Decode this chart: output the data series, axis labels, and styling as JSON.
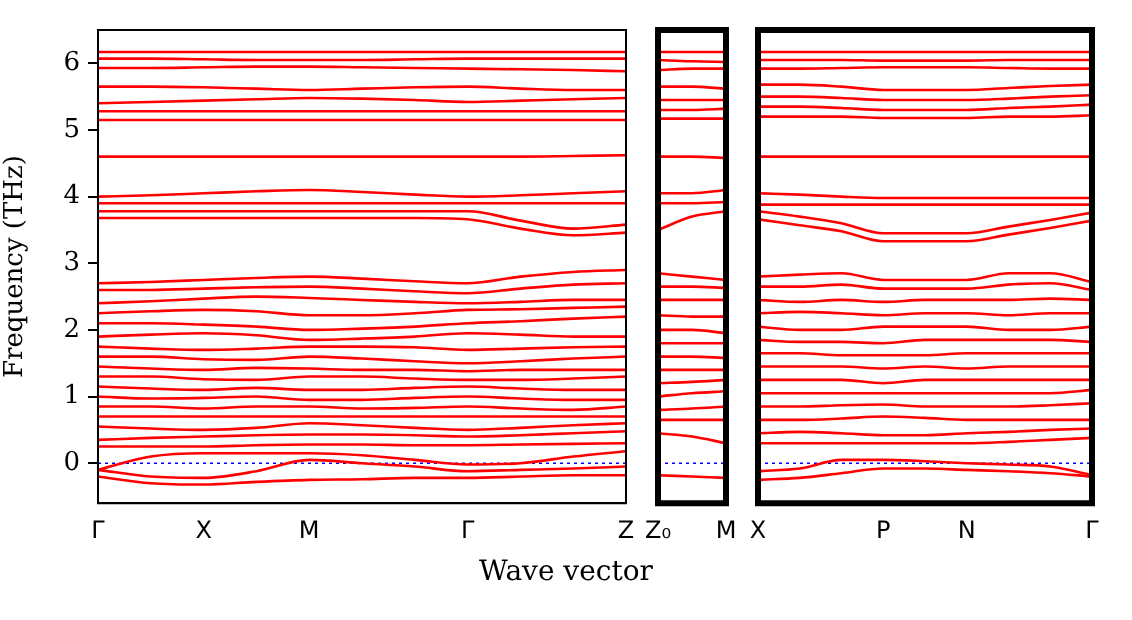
{
  "chart_data": [
    {
      "type": "line",
      "ylabel": "Frequency (THz)",
      "xlabel": "Wave vector",
      "categories": [
        "Γ",
        null,
        "X",
        null,
        "M",
        null,
        null,
        "Γ",
        null,
        null,
        "Z"
      ],
      "ylim": [
        -0.6,
        6.5
      ],
      "yticks": [
        0,
        1,
        2,
        3,
        4,
        5,
        6
      ],
      "grid": false,
      "legend": false,
      "marker": "none",
      "line_style": "solid",
      "ref_lines": [
        {
          "axis": "y",
          "value": 0,
          "color": "#0000ff",
          "line_style": "dotted"
        }
      ],
      "series": [
        {
          "color": "#ff0000",
          "values": [
            6.17,
            6.17,
            6.17,
            6.17,
            6.17,
            6.17,
            6.17,
            6.17,
            6.17,
            6.17,
            6.17
          ]
        },
        {
          "color": "#ff0000",
          "values": [
            6.07,
            6.07,
            6.06,
            6.05,
            6.05,
            6.05,
            6.06,
            6.07,
            6.07,
            6.07,
            6.07
          ]
        },
        {
          "color": "#ff0000",
          "values": [
            5.93,
            5.93,
            5.94,
            5.95,
            5.95,
            5.94,
            5.93,
            5.92,
            5.91,
            5.9,
            5.88
          ]
        },
        {
          "color": "#ff0000",
          "values": [
            5.65,
            5.65,
            5.64,
            5.62,
            5.6,
            5.62,
            5.64,
            5.65,
            5.62,
            5.6,
            5.6
          ]
        },
        {
          "color": "#ff0000",
          "values": [
            5.4,
            5.42,
            5.44,
            5.46,
            5.48,
            5.47,
            5.45,
            5.42,
            5.44,
            5.46,
            5.48
          ]
        },
        {
          "color": "#ff0000",
          "values": [
            5.28,
            5.28,
            5.28,
            5.28,
            5.28,
            5.28,
            5.28,
            5.28,
            5.28,
            5.28,
            5.28
          ]
        },
        {
          "color": "#ff0000",
          "values": [
            5.15,
            5.15,
            5.15,
            5.15,
            5.15,
            5.15,
            5.15,
            5.15,
            5.15,
            5.15,
            5.15
          ]
        },
        {
          "color": "#ff0000",
          "values": [
            4.6,
            4.6,
            4.6,
            4.6,
            4.6,
            4.6,
            4.6,
            4.6,
            4.6,
            4.61,
            4.62
          ]
        },
        {
          "color": "#ff0000",
          "values": [
            4.0,
            4.02,
            4.05,
            4.08,
            4.1,
            4.07,
            4.03,
            4.0,
            4.02,
            4.05,
            4.08
          ]
        },
        {
          "color": "#ff0000",
          "values": [
            3.9,
            3.9,
            3.9,
            3.9,
            3.9,
            3.9,
            3.9,
            3.9,
            3.9,
            3.9,
            3.9
          ]
        },
        {
          "color": "#ff0000",
          "values": [
            3.78,
            3.78,
            3.78,
            3.78,
            3.78,
            3.78,
            3.78,
            3.78,
            3.64,
            3.52,
            3.58
          ]
        },
        {
          "color": "#ff0000",
          "values": [
            3.68,
            3.68,
            3.68,
            3.68,
            3.68,
            3.68,
            3.68,
            3.66,
            3.52,
            3.42,
            3.46
          ]
        },
        {
          "color": "#ff0000",
          "values": [
            2.7,
            2.72,
            2.75,
            2.78,
            2.8,
            2.77,
            2.73,
            2.7,
            2.8,
            2.87,
            2.9
          ]
        },
        {
          "color": "#ff0000",
          "values": [
            2.6,
            2.6,
            2.62,
            2.64,
            2.65,
            2.62,
            2.58,
            2.55,
            2.62,
            2.68,
            2.7
          ]
        },
        {
          "color": "#ff0000",
          "values": [
            2.4,
            2.43,
            2.47,
            2.5,
            2.48,
            2.45,
            2.42,
            2.4,
            2.42,
            2.45,
            2.45
          ]
        },
        {
          "color": "#ff0000",
          "values": [
            2.25,
            2.28,
            2.3,
            2.28,
            2.22,
            2.22,
            2.25,
            2.3,
            2.31,
            2.33,
            2.35
          ]
        },
        {
          "color": "#ff0000",
          "values": [
            2.1,
            2.1,
            2.08,
            2.05,
            2.0,
            2.02,
            2.05,
            2.1,
            2.13,
            2.17,
            2.2
          ]
        },
        {
          "color": "#ff0000",
          "values": [
            1.9,
            1.93,
            1.95,
            1.92,
            1.85,
            1.87,
            1.9,
            1.95,
            1.93,
            1.9,
            1.9
          ]
        },
        {
          "color": "#ff0000",
          "values": [
            1.75,
            1.72,
            1.7,
            1.72,
            1.75,
            1.75,
            1.74,
            1.7,
            1.72,
            1.74,
            1.75
          ]
        },
        {
          "color": "#ff0000",
          "values": [
            1.6,
            1.6,
            1.56,
            1.55,
            1.6,
            1.57,
            1.53,
            1.5,
            1.53,
            1.57,
            1.6
          ]
        },
        {
          "color": "#ff0000",
          "values": [
            1.45,
            1.42,
            1.4,
            1.43,
            1.42,
            1.4,
            1.4,
            1.38,
            1.4,
            1.4,
            1.4
          ]
        },
        {
          "color": "#ff0000",
          "values": [
            1.3,
            1.3,
            1.26,
            1.25,
            1.3,
            1.3,
            1.27,
            1.25,
            1.25,
            1.27,
            1.3
          ]
        },
        {
          "color": "#ff0000",
          "values": [
            1.15,
            1.12,
            1.1,
            1.13,
            1.1,
            1.1,
            1.13,
            1.15,
            1.12,
            1.1,
            1.1
          ]
        },
        {
          "color": "#ff0000",
          "values": [
            1.0,
            0.97,
            0.98,
            1.0,
            0.95,
            0.95,
            0.98,
            1.0,
            0.97,
            0.95,
            0.95
          ]
        },
        {
          "color": "#ff0000",
          "values": [
            0.85,
            0.85,
            0.82,
            0.85,
            0.85,
            0.82,
            0.83,
            0.85,
            0.82,
            0.8,
            0.85
          ]
        },
        {
          "color": "#ff0000",
          "values": [
            0.7,
            0.7,
            0.7,
            0.7,
            0.7,
            0.7,
            0.7,
            0.7,
            0.7,
            0.7,
            0.7
          ]
        },
        {
          "color": "#ff0000",
          "values": [
            0.55,
            0.52,
            0.5,
            0.53,
            0.6,
            0.57,
            0.53,
            0.5,
            0.53,
            0.57,
            0.6
          ]
        },
        {
          "color": "#ff0000",
          "values": [
            0.35,
            0.38,
            0.4,
            0.42,
            0.43,
            0.43,
            0.42,
            0.4,
            0.42,
            0.45,
            0.48
          ]
        },
        {
          "color": "#ff0000",
          "values": [
            0.25,
            0.25,
            0.25,
            0.27,
            0.28,
            0.28,
            0.27,
            0.27,
            0.28,
            0.29,
            0.3
          ]
        },
        {
          "color": "#ff0000",
          "values": [
            -0.1,
            0.1,
            0.15,
            0.15,
            0.15,
            0.12,
            0.05,
            -0.02,
            0.0,
            0.1,
            0.18
          ]
        },
        {
          "color": "#ff0000",
          "values": [
            -0.1,
            -0.2,
            -0.22,
            -0.12,
            0.05,
            0.0,
            -0.05,
            -0.12,
            -0.1,
            -0.08,
            -0.05
          ]
        },
        {
          "color": "#ff0000",
          "values": [
            -0.2,
            -0.3,
            -0.32,
            -0.28,
            -0.25,
            -0.24,
            -0.22,
            -0.22,
            -0.2,
            -0.18,
            -0.18
          ]
        }
      ]
    },
    {
      "type": "line",
      "categories": [
        "Z₀",
        null,
        "M"
      ],
      "ylim": [
        -0.6,
        6.5
      ],
      "yticks": [
        0,
        1,
        2,
        3,
        4,
        5,
        6
      ],
      "tick_labels": "x",
      "grid": false,
      "legend": false,
      "marker": "none",
      "line_style": "solid",
      "ref_lines": [
        {
          "axis": "y",
          "value": 0,
          "color": "#0000ff",
          "line_style": "dotted"
        }
      ],
      "series": [
        {
          "color": "#ff0000",
          "values": [
            6.17,
            6.17,
            6.17
          ]
        },
        {
          "color": "#ff0000",
          "values": [
            6.05,
            6.03,
            6.02
          ]
        },
        {
          "color": "#ff0000",
          "values": [
            5.9,
            5.92,
            5.92
          ]
        },
        {
          "color": "#ff0000",
          "values": [
            5.65,
            5.65,
            5.62
          ]
        },
        {
          "color": "#ff0000",
          "values": [
            5.45,
            5.45,
            5.45
          ]
        },
        {
          "color": "#ff0000",
          "values": [
            5.3,
            5.3,
            5.32
          ]
        },
        {
          "color": "#ff0000",
          "values": [
            5.17,
            5.17,
            5.17
          ]
        },
        {
          "color": "#ff0000",
          "values": [
            4.6,
            4.6,
            4.58
          ]
        },
        {
          "color": "#ff0000",
          "values": [
            4.05,
            4.05,
            4.1
          ]
        },
        {
          "color": "#ff0000",
          "values": [
            3.9,
            3.9,
            3.92
          ]
        },
        {
          "color": "#ff0000",
          "values": [
            3.5,
            3.7,
            3.78
          ]
        },
        {
          "color": "#ff0000",
          "values": [
            2.85,
            2.8,
            2.75
          ]
        },
        {
          "color": "#ff0000",
          "values": [
            2.65,
            2.65,
            2.63
          ]
        },
        {
          "color": "#ff0000",
          "values": [
            2.45,
            2.45,
            2.45
          ]
        },
        {
          "color": "#ff0000",
          "values": [
            2.22,
            2.2,
            2.2
          ]
        },
        {
          "color": "#ff0000",
          "values": [
            2.0,
            2.0,
            1.95
          ]
        },
        {
          "color": "#ff0000",
          "values": [
            1.8,
            1.8,
            1.8
          ]
        },
        {
          "color": "#ff0000",
          "values": [
            1.6,
            1.6,
            1.58
          ]
        },
        {
          "color": "#ff0000",
          "values": [
            1.4,
            1.4,
            1.4
          ]
        },
        {
          "color": "#ff0000",
          "values": [
            1.2,
            1.22,
            1.25
          ]
        },
        {
          "color": "#ff0000",
          "values": [
            1.0,
            1.05,
            1.08
          ]
        },
        {
          "color": "#ff0000",
          "values": [
            0.8,
            0.82,
            0.85
          ]
        },
        {
          "color": "#ff0000",
          "values": [
            0.65,
            0.65,
            0.65
          ]
        },
        {
          "color": "#ff0000",
          "values": [
            0.45,
            0.4,
            0.3
          ]
        },
        {
          "color": "#ff0000",
          "values": [
            -0.18,
            -0.2,
            -0.22
          ]
        }
      ]
    },
    {
      "type": "line",
      "categories": [
        "X",
        null,
        null,
        "P",
        null,
        "N",
        null,
        null,
        "Γ"
      ],
      "ylim": [
        -0.6,
        6.5
      ],
      "yticks": [
        0,
        1,
        2,
        3,
        4,
        5,
        6
      ],
      "tick_labels": "x",
      "grid": false,
      "legend": false,
      "marker": "none",
      "line_style": "solid",
      "ref_lines": [
        {
          "axis": "y",
          "value": 0,
          "color": "#0000ff",
          "line_style": "dotted"
        }
      ],
      "series": [
        {
          "color": "#ff0000",
          "values": [
            6.17,
            6.17,
            6.17,
            6.17,
            6.17,
            6.17,
            6.17,
            6.17,
            6.17
          ]
        },
        {
          "color": "#ff0000",
          "values": [
            6.05,
            6.05,
            6.05,
            6.04,
            6.04,
            6.04,
            6.05,
            6.05,
            6.05
          ]
        },
        {
          "color": "#ff0000",
          "values": [
            5.92,
            5.92,
            5.93,
            5.94,
            5.94,
            5.94,
            5.93,
            5.92,
            5.92
          ]
        },
        {
          "color": "#ff0000",
          "values": [
            5.68,
            5.68,
            5.65,
            5.6,
            5.6,
            5.6,
            5.63,
            5.66,
            5.68
          ]
        },
        {
          "color": "#ff0000",
          "values": [
            5.5,
            5.5,
            5.48,
            5.45,
            5.45,
            5.45,
            5.47,
            5.5,
            5.52
          ]
        },
        {
          "color": "#ff0000",
          "values": [
            5.35,
            5.35,
            5.33,
            5.3,
            5.3,
            5.3,
            5.33,
            5.35,
            5.38
          ]
        },
        {
          "color": "#ff0000",
          "values": [
            5.2,
            5.2,
            5.2,
            5.18,
            5.18,
            5.18,
            5.2,
            5.2,
            5.22
          ]
        },
        {
          "color": "#ff0000",
          "values": [
            4.6,
            4.6,
            4.6,
            4.6,
            4.6,
            4.6,
            4.6,
            4.6,
            4.6
          ]
        },
        {
          "color": "#ff0000",
          "values": [
            4.05,
            4.03,
            4.0,
            3.98,
            3.98,
            3.98,
            3.98,
            3.98,
            3.98
          ]
        },
        {
          "color": "#ff0000",
          "values": [
            3.88,
            3.88,
            3.88,
            3.88,
            3.88,
            3.88,
            3.88,
            3.88,
            3.88
          ]
        },
        {
          "color": "#ff0000",
          "values": [
            3.78,
            3.7,
            3.6,
            3.45,
            3.45,
            3.45,
            3.55,
            3.65,
            3.76
          ]
        },
        {
          "color": "#ff0000",
          "values": [
            3.66,
            3.57,
            3.48,
            3.33,
            3.33,
            3.33,
            3.43,
            3.53,
            3.64
          ]
        },
        {
          "color": "#ff0000",
          "values": [
            2.8,
            2.83,
            2.85,
            2.75,
            2.75,
            2.75,
            2.85,
            2.85,
            2.72
          ]
        },
        {
          "color": "#ff0000",
          "values": [
            2.65,
            2.65,
            2.68,
            2.62,
            2.62,
            2.62,
            2.68,
            2.7,
            2.6
          ]
        },
        {
          "color": "#ff0000",
          "values": [
            2.45,
            2.42,
            2.45,
            2.42,
            2.45,
            2.45,
            2.45,
            2.47,
            2.45
          ]
        },
        {
          "color": "#ff0000",
          "values": [
            2.25,
            2.27,
            2.25,
            2.22,
            2.25,
            2.25,
            2.22,
            2.25,
            2.25
          ]
        },
        {
          "color": "#ff0000",
          "values": [
            2.05,
            2.0,
            2.0,
            2.05,
            2.05,
            2.05,
            2.0,
            2.0,
            2.05
          ]
        },
        {
          "color": "#ff0000",
          "values": [
            1.85,
            1.82,
            1.82,
            1.8,
            1.85,
            1.85,
            1.85,
            1.85,
            1.82
          ]
        },
        {
          "color": "#ff0000",
          "values": [
            1.65,
            1.65,
            1.62,
            1.62,
            1.62,
            1.65,
            1.65,
            1.65,
            1.65
          ]
        },
        {
          "color": "#ff0000",
          "values": [
            1.45,
            1.45,
            1.45,
            1.42,
            1.45,
            1.42,
            1.45,
            1.45,
            1.45
          ]
        },
        {
          "color": "#ff0000",
          "values": [
            1.25,
            1.25,
            1.25,
            1.2,
            1.25,
            1.25,
            1.25,
            1.25,
            1.25
          ]
        },
        {
          "color": "#ff0000",
          "values": [
            1.05,
            1.05,
            1.05,
            1.05,
            1.05,
            1.05,
            1.05,
            1.05,
            1.1
          ]
        },
        {
          "color": "#ff0000",
          "values": [
            0.85,
            0.85,
            0.87,
            0.88,
            0.85,
            0.85,
            0.85,
            0.87,
            0.9
          ]
        },
        {
          "color": "#ff0000",
          "values": [
            0.65,
            0.65,
            0.67,
            0.7,
            0.68,
            0.65,
            0.65,
            0.65,
            0.65
          ]
        },
        {
          "color": "#ff0000",
          "values": [
            0.45,
            0.47,
            0.45,
            0.42,
            0.42,
            0.45,
            0.47,
            0.5,
            0.52
          ]
        },
        {
          "color": "#ff0000",
          "values": [
            0.3,
            0.3,
            0.3,
            0.3,
            0.3,
            0.3,
            0.32,
            0.35,
            0.38
          ]
        },
        {
          "color": "#ff0000",
          "values": [
            -0.12,
            -0.08,
            0.05,
            0.05,
            0.03,
            0.0,
            -0.02,
            -0.05,
            -0.18
          ]
        },
        {
          "color": "#ff0000",
          "values": [
            -0.25,
            -0.22,
            -0.15,
            -0.08,
            -0.08,
            -0.1,
            -0.12,
            -0.15,
            -0.2
          ]
        }
      ]
    }
  ]
}
